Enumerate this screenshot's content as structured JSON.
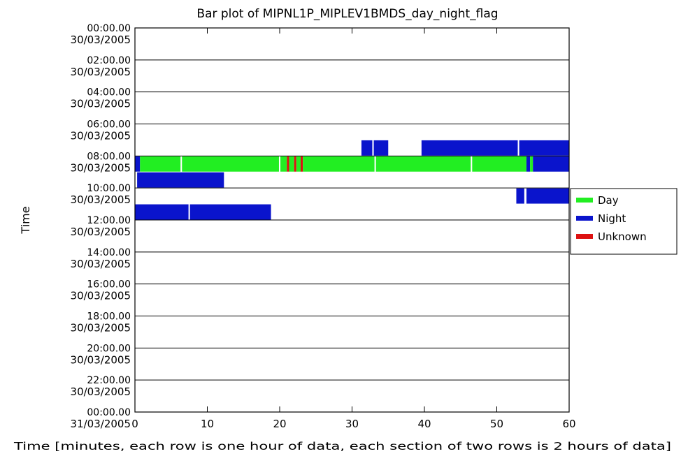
{
  "chart_data": {
    "type": "bar",
    "title": "Bar plot of MIPNL1P_MIPLEV1BMDS_day_night_flag",
    "xlabel": "Time [minutes, each row is one hour of data, each section of two rows is 2 hours of data]",
    "ylabel": "Time",
    "xlim": [
      0,
      60
    ],
    "x_ticks": [
      "0",
      "10",
      "20",
      "30",
      "40",
      "50",
      "60"
    ],
    "y_ticks": [
      {
        "time": "00:00.00",
        "date": "30/03/2005"
      },
      {
        "time": "02:00.00",
        "date": "30/03/2005"
      },
      {
        "time": "04:00.00",
        "date": "30/03/2005"
      },
      {
        "time": "06:00.00",
        "date": "30/03/2005"
      },
      {
        "time": "08:00.00",
        "date": "30/03/2005"
      },
      {
        "time": "10:00.00",
        "date": "30/03/2005"
      },
      {
        "time": "12:00.00",
        "date": "30/03/2005"
      },
      {
        "time": "14:00.00",
        "date": "30/03/2005"
      },
      {
        "time": "16:00.00",
        "date": "30/03/2005"
      },
      {
        "time": "18:00.00",
        "date": "30/03/2005"
      },
      {
        "time": "20:00.00",
        "date": "30/03/2005"
      },
      {
        "time": "22:00.00",
        "date": "30/03/2005"
      },
      {
        "time": "00:00.00",
        "date": "31/03/2005"
      }
    ],
    "legend": {
      "placement": "right",
      "entries": [
        {
          "name": "Day",
          "color": "#22ee22"
        },
        {
          "name": "Night",
          "color": "#0a14cc"
        },
        {
          "name": "Unknown",
          "color": "#dd1111"
        }
      ]
    },
    "grid": false,
    "segments": [
      {
        "hour": "07:00",
        "start": 31.3,
        "end": 32.8,
        "flag": "Night"
      },
      {
        "hour": "07:00",
        "start": 33.0,
        "end": 35.0,
        "flag": "Night"
      },
      {
        "hour": "07:00",
        "start": 39.6,
        "end": 52.9,
        "flag": "Night"
      },
      {
        "hour": "07:00",
        "start": 53.1,
        "end": 60.0,
        "flag": "Night"
      },
      {
        "hour": "08:00",
        "start": 0.0,
        "end": 0.7,
        "flag": "Night"
      },
      {
        "hour": "08:00",
        "start": 0.7,
        "end": 6.3,
        "flag": "Day"
      },
      {
        "hour": "08:00",
        "start": 6.5,
        "end": 19.9,
        "flag": "Day"
      },
      {
        "hour": "08:00",
        "start": 20.1,
        "end": 21.0,
        "flag": "Day"
      },
      {
        "hour": "08:00",
        "start": 21.0,
        "end": 21.3,
        "flag": "Unknown"
      },
      {
        "hour": "08:00",
        "start": 21.3,
        "end": 22.0,
        "flag": "Day"
      },
      {
        "hour": "08:00",
        "start": 22.0,
        "end": 22.3,
        "flag": "Unknown"
      },
      {
        "hour": "08:00",
        "start": 22.3,
        "end": 22.9,
        "flag": "Day"
      },
      {
        "hour": "08:00",
        "start": 22.9,
        "end": 23.2,
        "flag": "Unknown"
      },
      {
        "hour": "08:00",
        "start": 23.2,
        "end": 33.1,
        "flag": "Day"
      },
      {
        "hour": "08:00",
        "start": 33.3,
        "end": 46.4,
        "flag": "Day"
      },
      {
        "hour": "08:00",
        "start": 46.6,
        "end": 54.1,
        "flag": "Day"
      },
      {
        "hour": "08:00",
        "start": 54.1,
        "end": 54.6,
        "flag": "Night"
      },
      {
        "hour": "08:00",
        "start": 54.6,
        "end": 55.0,
        "flag": "Day"
      },
      {
        "hour": "08:00",
        "start": 55.0,
        "end": 60.0,
        "flag": "Night"
      },
      {
        "hour": "09:00",
        "start": 0.3,
        "end": 12.3,
        "flag": "Night"
      },
      {
        "hour": "10:00",
        "start": 52.7,
        "end": 53.8,
        "flag": "Night"
      },
      {
        "hour": "10:00",
        "start": 54.1,
        "end": 60.0,
        "flag": "Night"
      },
      {
        "hour": "11:00",
        "start": 0.0,
        "end": 7.4,
        "flag": "Night"
      },
      {
        "hour": "11:00",
        "start": 7.6,
        "end": 18.8,
        "flag": "Night"
      }
    ]
  }
}
